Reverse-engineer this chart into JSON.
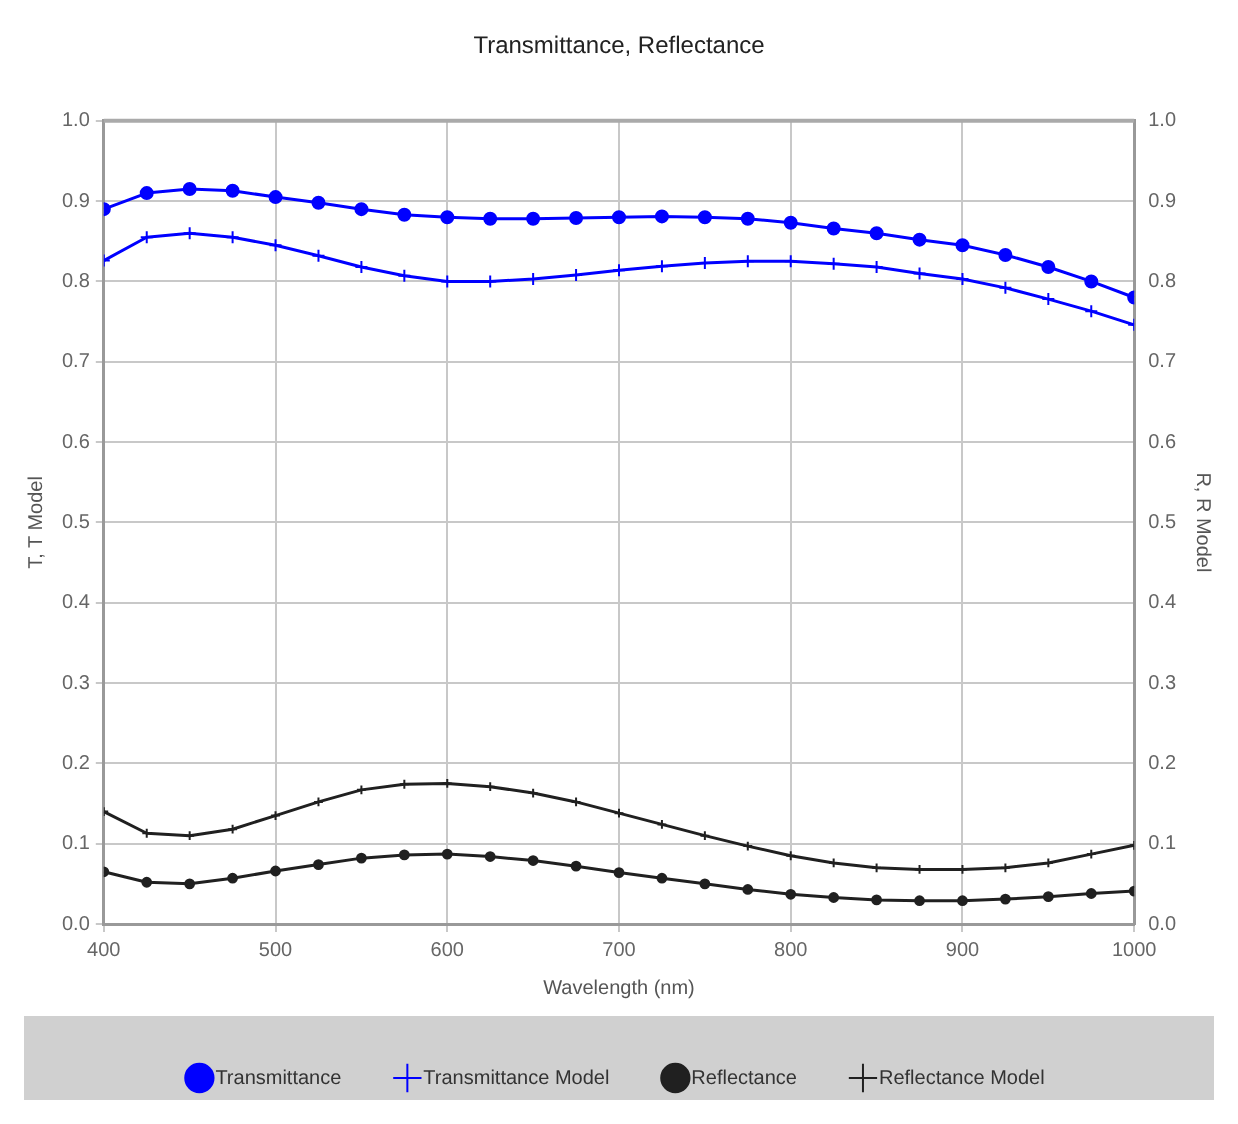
{
  "chart_data": {
    "type": "line",
    "title": "Transmittance, Reflectance",
    "xlabel": "Wavelength (nm)",
    "ylabel": "T, T Model",
    "y2label": "R, R Model",
    "x": [
      400,
      425,
      450,
      475,
      500,
      525,
      550,
      575,
      600,
      625,
      650,
      675,
      700,
      725,
      750,
      775,
      800,
      825,
      850,
      875,
      900,
      925,
      950,
      975,
      1000
    ],
    "series": [
      {
        "name": "Transmittance",
        "color": "#0000ff",
        "marker": "circle",
        "values": [
          0.89,
          0.91,
          0.915,
          0.913,
          0.905,
          0.898,
          0.89,
          0.883,
          0.88,
          0.878,
          0.878,
          0.879,
          0.88,
          0.881,
          0.88,
          0.878,
          0.873,
          0.866,
          0.86,
          0.852,
          0.845,
          0.833,
          0.818,
          0.8,
          0.78
        ]
      },
      {
        "name": "Transmittance Model",
        "color": "#0000ff",
        "marker": "cross",
        "values": [
          0.826,
          0.855,
          0.86,
          0.855,
          0.845,
          0.832,
          0.818,
          0.807,
          0.8,
          0.8,
          0.803,
          0.808,
          0.814,
          0.819,
          0.823,
          0.825,
          0.825,
          0.822,
          0.818,
          0.81,
          0.803,
          0.792,
          0.778,
          0.763,
          0.746
        ]
      },
      {
        "name": "Reflectance",
        "color": "#202020",
        "marker": "circle",
        "axis": "y2",
        "values": [
          0.065,
          0.052,
          0.05,
          0.057,
          0.066,
          0.074,
          0.082,
          0.086,
          0.087,
          0.084,
          0.079,
          0.072,
          0.064,
          0.057,
          0.05,
          0.043,
          0.037,
          0.033,
          0.03,
          0.029,
          0.029,
          0.031,
          0.034,
          0.038,
          0.041
        ]
      },
      {
        "name": "Reflectance Model",
        "color": "#202020",
        "marker": "cross",
        "axis": "y2",
        "values": [
          0.14,
          0.113,
          0.11,
          0.118,
          0.135,
          0.152,
          0.167,
          0.174,
          0.175,
          0.171,
          0.163,
          0.152,
          0.138,
          0.124,
          0.11,
          0.097,
          0.085,
          0.076,
          0.07,
          0.068,
          0.068,
          0.07,
          0.076,
          0.087,
          0.098
        ]
      }
    ],
    "xlim": [
      400,
      1000
    ],
    "xticks": [
      400,
      500,
      600,
      700,
      800,
      900,
      1000
    ],
    "ylim": [
      0,
      1
    ],
    "yticks": [
      {
        "value": 0,
        "label": "0.0"
      },
      0.1,
      0.2,
      0.3,
      0.4,
      0.5,
      0.6,
      0.7,
      0.8,
      0.9,
      {
        "value": 1,
        "label": "1.0"
      }
    ],
    "y2lim": [
      0,
      1
    ],
    "y2ticks": [
      {
        "value": 0,
        "label": "0.0"
      },
      0.1,
      0.2,
      0.3,
      0.4,
      0.5,
      0.6,
      0.7,
      0.8,
      0.9,
      {
        "value": 1,
        "label": "1.0"
      }
    ],
    "grid": true,
    "legend": "bottom",
    "line_style": "solid"
  }
}
